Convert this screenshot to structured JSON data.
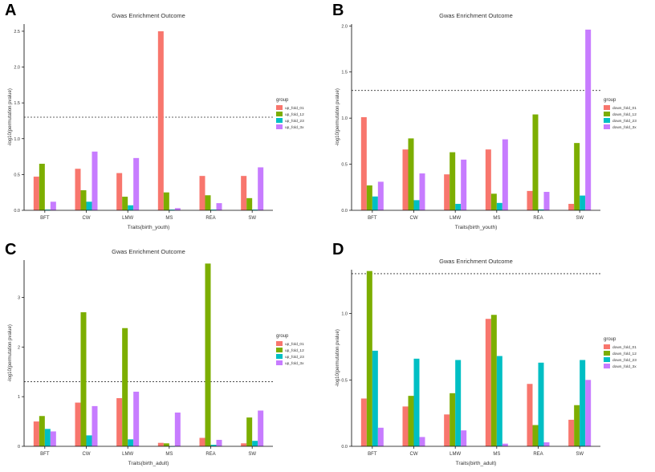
{
  "colors": {
    "s1": "#F8766D",
    "s2": "#7CAE00",
    "s3": "#00BFC4",
    "s4": "#C77CFF",
    "axis": "#000000",
    "threshold": "#333333"
  },
  "chart_data": [
    {
      "panel_label": "A",
      "type": "bar",
      "title": "Gwas Enrichment Outcome",
      "xlabel": "Traits(birth_youth)",
      "ylabel": "-log10(permutation pvalue)",
      "ylim": [
        0,
        2.6
      ],
      "yticks": [
        0.0,
        0.5,
        1.0,
        1.5,
        2.0,
        2.5
      ],
      "ytick_labels": [
        "0.0",
        "0.5",
        "1.0",
        "1.5",
        "2.0",
        "2.5"
      ],
      "threshold": 1.3,
      "legend_title": "group",
      "legend_position": "right",
      "categories": [
        "BFT",
        "CW",
        "LMW",
        "MS",
        "REA",
        "SW"
      ],
      "series": [
        {
          "name": "up_fold_01",
          "values": [
            0.47,
            0.58,
            0.52,
            2.5,
            0.48,
            0.48
          ]
        },
        {
          "name": "up_fold_12",
          "values": [
            0.65,
            0.28,
            0.19,
            0.25,
            0.21,
            0.17
          ]
        },
        {
          "name": "up_fold_23",
          "values": [
            0.01,
            0.12,
            0.07,
            0.01,
            0.01,
            0.01
          ]
        },
        {
          "name": "up_fold_3x",
          "values": [
            0.12,
            0.82,
            0.73,
            0.03,
            0.1,
            0.6
          ]
        }
      ]
    },
    {
      "panel_label": "B",
      "type": "bar",
      "title": "Gwas Enrichment Outcome",
      "xlabel": "Traits(birth_youth)",
      "ylabel": "-log10(permutation pvalue)",
      "ylim": [
        0,
        2.02
      ],
      "yticks": [
        0.0,
        0.5,
        1.0,
        1.5,
        2.0
      ],
      "ytick_labels": [
        "0.0",
        "0.5",
        "1.0",
        "1.5",
        "2.0"
      ],
      "threshold": 1.3,
      "legend_title": "group",
      "legend_position": "right",
      "categories": [
        "BFT",
        "CW",
        "LMW",
        "MS",
        "REA",
        "SW"
      ],
      "series": [
        {
          "name": "down_fold_01",
          "values": [
            1.01,
            0.66,
            0.39,
            0.66,
            0.21,
            0.07
          ]
        },
        {
          "name": "down_fold_12",
          "values": [
            0.27,
            0.78,
            0.63,
            0.18,
            1.04,
            0.73
          ]
        },
        {
          "name": "down_fold_23",
          "values": [
            0.15,
            0.11,
            0.07,
            0.08,
            0.01,
            0.16
          ]
        },
        {
          "name": "down_fold_3x",
          "values": [
            0.31,
            0.4,
            0.55,
            0.77,
            0.2,
            1.96
          ]
        }
      ]
    },
    {
      "panel_label": "C",
      "type": "bar",
      "title": "Gwas Enrichment Outcome",
      "xlabel": "Traits(birth_adult)",
      "ylabel": "-log10(permutation pvalue)",
      "ylim": [
        0,
        3.75
      ],
      "yticks": [
        0,
        1,
        2,
        3
      ],
      "ytick_labels": [
        "0",
        "1",
        "2",
        "3"
      ],
      "threshold": 1.3,
      "legend_title": "group",
      "legend_position": "right",
      "categories": [
        "BFT",
        "CW",
        "LMW",
        "MS",
        "REA",
        "SW"
      ],
      "series": [
        {
          "name": "up_fold_01",
          "values": [
            0.5,
            0.88,
            0.97,
            0.07,
            0.17,
            0.06
          ]
        },
        {
          "name": "up_fold_12",
          "values": [
            0.61,
            2.7,
            2.38,
            0.06,
            3.68,
            0.58
          ]
        },
        {
          "name": "up_fold_23",
          "values": [
            0.35,
            0.22,
            0.14,
            0.0,
            0.03,
            0.11
          ]
        },
        {
          "name": "up_fold_3x",
          "values": [
            0.3,
            0.81,
            1.1,
            0.68,
            0.13,
            0.72
          ]
        }
      ]
    },
    {
      "panel_label": "D",
      "type": "bar",
      "title": "Gwas Enrichment Outcome",
      "xlabel": "Traits(birth_adult)",
      "ylabel": "-log10(permutation pvalue)",
      "ylim": [
        0,
        1.33
      ],
      "yticks": [
        0.0,
        0.5,
        1.0
      ],
      "ytick_labels": [
        "0.0",
        "0.5",
        "1.0"
      ],
      "threshold": 1.3,
      "legend_title": "group",
      "legend_position": "right",
      "categories": [
        "BFT",
        "CW",
        "LMW",
        "MS",
        "REA",
        "SW"
      ],
      "series": [
        {
          "name": "down_fold_01",
          "values": [
            0.36,
            0.3,
            0.24,
            0.96,
            0.47,
            0.2
          ]
        },
        {
          "name": "down_fold_12",
          "values": [
            1.32,
            0.38,
            0.4,
            0.99,
            0.16,
            0.31
          ]
        },
        {
          "name": "down_fold_23",
          "values": [
            0.72,
            0.66,
            0.65,
            0.68,
            0.63,
            0.65
          ]
        },
        {
          "name": "down_fold_3x",
          "values": [
            0.14,
            0.07,
            0.12,
            0.02,
            0.03,
            0.5
          ]
        }
      ]
    }
  ]
}
